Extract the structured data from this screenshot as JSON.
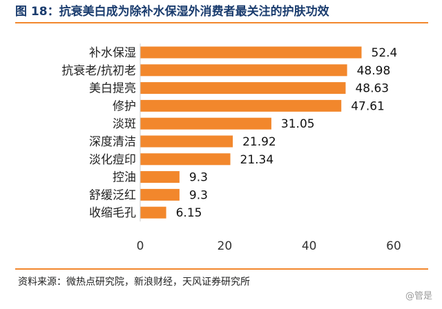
{
  "title": "图 18：抗衰美白成为除补水保湿外消费者最关注的护肤功效",
  "source": "资料来源：微热点研究院，新浪财经，天风证券研究所",
  "watermark": "@管是",
  "colors": {
    "bar": "#f2872c",
    "title": "#1a3c6e",
    "rule": "#f2872c"
  },
  "chart_data": {
    "type": "bar",
    "orientation": "horizontal",
    "categories": [
      "补水保湿",
      "抗衰老/抗初老",
      "美白提亮",
      "修护",
      "淡斑",
      "深度清洁",
      "淡化痘印",
      "控油",
      "舒缓泛红",
      "收缩毛孔"
    ],
    "values": [
      52.4,
      48.98,
      48.63,
      47.61,
      31.05,
      21.92,
      21.34,
      9.3,
      9.3,
      6.15
    ],
    "value_labels": [
      "52.4",
      "48.98",
      "48.63",
      "47.61",
      "31.05",
      "21.92",
      "21.34",
      "9.3",
      "9.3",
      "6.15"
    ],
    "xlim": [
      0,
      60
    ],
    "xticks": [
      0,
      20,
      40,
      60
    ],
    "grid": false,
    "legend": "none"
  }
}
